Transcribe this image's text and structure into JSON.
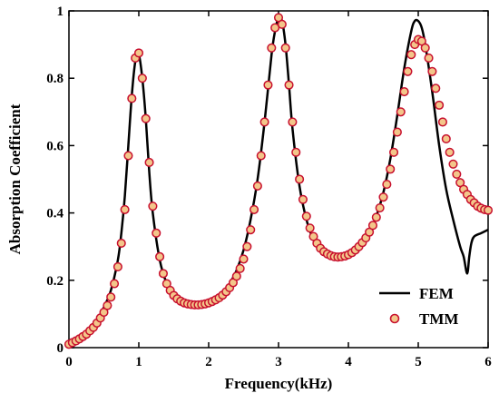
{
  "chart_data": {
    "type": "line",
    "title": "",
    "xlabel": "Frequency(kHz)",
    "ylabel": "Absorption Coefficient",
    "xlim": [
      0,
      6
    ],
    "ylim": [
      0,
      1
    ],
    "xticks": [
      0,
      1,
      2,
      3,
      4,
      5,
      6
    ],
    "yticks": [
      0,
      0.2,
      0.4,
      0.6,
      0.8,
      1
    ],
    "xtick_labels": [
      "0",
      "1",
      "2",
      "3",
      "4",
      "5",
      "6"
    ],
    "ytick_labels": [
      "0",
      "0.2",
      "0.4",
      "0.6",
      "0.8",
      "1"
    ],
    "grid": false,
    "legend_position": "bottom-right",
    "series": [
      {
        "name": "FEM",
        "style": "line",
        "color": "#000000",
        "x": [
          0,
          0.1,
          0.2,
          0.3,
          0.4,
          0.5,
          0.6,
          0.7,
          0.75,
          0.8,
          0.85,
          0.9,
          0.95,
          1.0,
          1.05,
          1.1,
          1.15,
          1.2,
          1.3,
          1.4,
          1.5,
          1.6,
          1.7,
          1.8,
          1.9,
          2.0,
          2.1,
          2.2,
          2.3,
          2.4,
          2.5,
          2.6,
          2.7,
          2.8,
          2.9,
          2.95,
          3.0,
          3.05,
          3.1,
          3.15,
          3.2,
          3.3,
          3.4,
          3.5,
          3.6,
          3.7,
          3.8,
          3.9,
          4.0,
          4.1,
          4.2,
          4.3,
          4.4,
          4.5,
          4.6,
          4.7,
          4.8,
          4.9,
          4.95,
          5.0,
          5.05,
          5.1,
          5.2,
          5.3,
          5.4,
          5.5,
          5.6,
          5.65,
          5.7,
          5.73,
          5.76,
          5.8,
          5.9,
          6.0
        ],
        "y": [
          0.01,
          0.02,
          0.035,
          0.055,
          0.08,
          0.12,
          0.17,
          0.26,
          0.34,
          0.45,
          0.6,
          0.75,
          0.85,
          0.87,
          0.8,
          0.68,
          0.52,
          0.4,
          0.26,
          0.19,
          0.155,
          0.135,
          0.125,
          0.12,
          0.12,
          0.125,
          0.14,
          0.16,
          0.19,
          0.23,
          0.29,
          0.38,
          0.5,
          0.67,
          0.87,
          0.94,
          0.98,
          0.97,
          0.9,
          0.78,
          0.65,
          0.48,
          0.38,
          0.32,
          0.29,
          0.275,
          0.27,
          0.27,
          0.275,
          0.29,
          0.31,
          0.34,
          0.39,
          0.46,
          0.56,
          0.69,
          0.83,
          0.94,
          0.97,
          0.97,
          0.95,
          0.9,
          0.76,
          0.6,
          0.47,
          0.38,
          0.3,
          0.27,
          0.22,
          0.27,
          0.31,
          0.33,
          0.34,
          0.35
        ]
      },
      {
        "name": "TMM",
        "style": "marker",
        "marker_edge": "#c8102e",
        "marker_face": "#f3c68a",
        "x": [
          0,
          0.05,
          0.1,
          0.15,
          0.2,
          0.25,
          0.3,
          0.35,
          0.4,
          0.45,
          0.5,
          0.55,
          0.6,
          0.65,
          0.7,
          0.75,
          0.8,
          0.85,
          0.9,
          0.95,
          1.0,
          1.05,
          1.1,
          1.15,
          1.2,
          1.25,
          1.3,
          1.35,
          1.4,
          1.45,
          1.5,
          1.55,
          1.6,
          1.65,
          1.7,
          1.75,
          1.8,
          1.85,
          1.9,
          1.95,
          2.0,
          2.05,
          2.1,
          2.15,
          2.2,
          2.25,
          2.3,
          2.35,
          2.4,
          2.45,
          2.5,
          2.55,
          2.6,
          2.65,
          2.7,
          2.75,
          2.8,
          2.85,
          2.9,
          2.95,
          3.0,
          3.05,
          3.1,
          3.15,
          3.2,
          3.25,
          3.3,
          3.35,
          3.4,
          3.45,
          3.5,
          3.55,
          3.6,
          3.65,
          3.7,
          3.75,
          3.8,
          3.85,
          3.9,
          3.95,
          4.0,
          4.05,
          4.1,
          4.15,
          4.2,
          4.25,
          4.3,
          4.35,
          4.4,
          4.45,
          4.5,
          4.55,
          4.6,
          4.65,
          4.7,
          4.75,
          4.8,
          4.85,
          4.9,
          4.95,
          5.0,
          5.05,
          5.1,
          5.15,
          5.2,
          5.25,
          5.3,
          5.35,
          5.4,
          5.45,
          5.5,
          5.55,
          5.6,
          5.65,
          5.7,
          5.75,
          5.8,
          5.85,
          5.9,
          5.95,
          6.0
        ],
        "y": [
          0.01,
          0.015,
          0.02,
          0.026,
          0.033,
          0.04,
          0.05,
          0.06,
          0.073,
          0.088,
          0.105,
          0.125,
          0.15,
          0.19,
          0.24,
          0.31,
          0.41,
          0.57,
          0.74,
          0.86,
          0.875,
          0.8,
          0.68,
          0.55,
          0.42,
          0.34,
          0.27,
          0.22,
          0.19,
          0.17,
          0.155,
          0.145,
          0.138,
          0.133,
          0.13,
          0.128,
          0.127,
          0.127,
          0.128,
          0.13,
          0.133,
          0.137,
          0.142,
          0.148,
          0.156,
          0.166,
          0.178,
          0.193,
          0.212,
          0.235,
          0.263,
          0.3,
          0.35,
          0.41,
          0.48,
          0.57,
          0.67,
          0.78,
          0.89,
          0.95,
          0.98,
          0.96,
          0.89,
          0.78,
          0.67,
          0.58,
          0.5,
          0.44,
          0.39,
          0.355,
          0.33,
          0.31,
          0.295,
          0.285,
          0.278,
          0.273,
          0.27,
          0.269,
          0.27,
          0.272,
          0.276,
          0.282,
          0.29,
          0.3,
          0.312,
          0.326,
          0.343,
          0.363,
          0.387,
          0.415,
          0.447,
          0.485,
          0.53,
          0.58,
          0.64,
          0.7,
          0.76,
          0.82,
          0.87,
          0.9,
          0.915,
          0.91,
          0.89,
          0.86,
          0.82,
          0.77,
          0.72,
          0.67,
          0.62,
          0.58,
          0.545,
          0.515,
          0.49,
          0.47,
          0.455,
          0.44,
          0.43,
          0.42,
          0.414,
          0.41,
          0.408
        ]
      }
    ]
  }
}
